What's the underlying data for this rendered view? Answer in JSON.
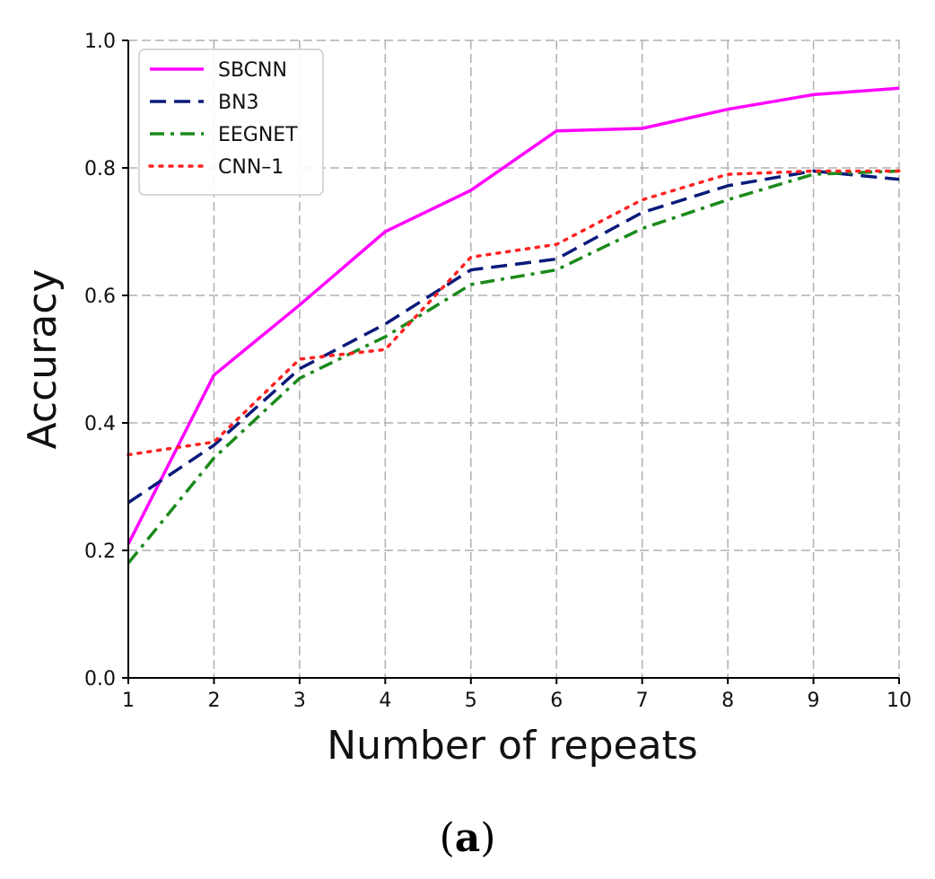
{
  "chart_data": {
    "type": "line",
    "title": "",
    "xlabel": "Number of repeats",
    "ylabel": "Accuracy",
    "x": [
      1,
      2,
      3,
      4,
      5,
      6,
      7,
      8,
      9,
      10
    ],
    "xticks": [
      "1",
      "2",
      "3",
      "4",
      "5",
      "6",
      "7",
      "8",
      "9",
      "10"
    ],
    "yticks": [
      "0.0",
      "0.2",
      "0.4",
      "0.6",
      "0.8",
      "1.0"
    ],
    "xlim": [
      1,
      10
    ],
    "ylim": [
      0,
      1
    ],
    "grid": true,
    "legend_position": "top-left",
    "series": [
      {
        "name": "SBCNN",
        "color": "#ff00ff",
        "style": "solid",
        "values": [
          0.21,
          0.475,
          0.585,
          0.7,
          0.765,
          0.858,
          0.862,
          0.892,
          0.915,
          0.925
        ]
      },
      {
        "name": "BN3",
        "color": "#0a1a7a",
        "style": "dashed",
        "values": [
          0.275,
          0.365,
          0.485,
          0.555,
          0.64,
          0.657,
          0.73,
          0.772,
          0.795,
          0.782
        ]
      },
      {
        "name": "EEGNET",
        "color": "#1a8a1a",
        "style": "dashdot",
        "values": [
          0.18,
          0.345,
          0.47,
          0.535,
          0.617,
          0.64,
          0.705,
          0.75,
          0.79,
          0.795
        ]
      },
      {
        "name": "CNN–1",
        "color": "#ff2222",
        "style": "dotted",
        "values": [
          0.35,
          0.37,
          0.5,
          0.515,
          0.66,
          0.68,
          0.75,
          0.79,
          0.795,
          0.795
        ]
      }
    ]
  },
  "caption": {
    "open": "(",
    "letter": "a",
    "close": ")"
  }
}
